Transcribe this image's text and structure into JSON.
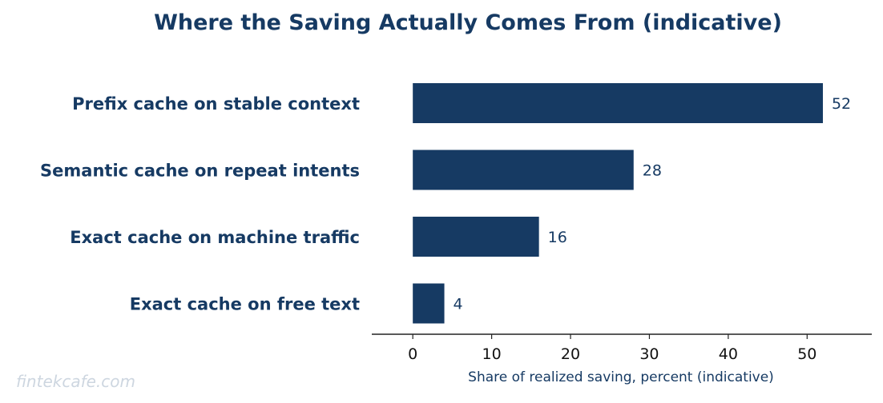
{
  "chart_data": {
    "type": "bar",
    "orientation": "horizontal",
    "title": "Where the Saving Actually Comes From (indicative)",
    "xlabel": "Share of realized saving, percent (indicative)",
    "ylabel": "",
    "categories": [
      "Prefix cache on stable context",
      "Semantic cache on repeat intents",
      "Exact cache on machine traffic",
      "Exact cache on free text"
    ],
    "values": [
      52,
      28,
      16,
      4
    ],
    "value_labels": [
      "52",
      "28",
      "16",
      "4"
    ],
    "xticks": [
      "0",
      "10",
      "20",
      "30",
      "40",
      "50"
    ],
    "xlim": [
      -5.2,
      58.2
    ],
    "grid": false,
    "bar_color": "#163a63"
  },
  "watermark": "fintekcafe.com"
}
